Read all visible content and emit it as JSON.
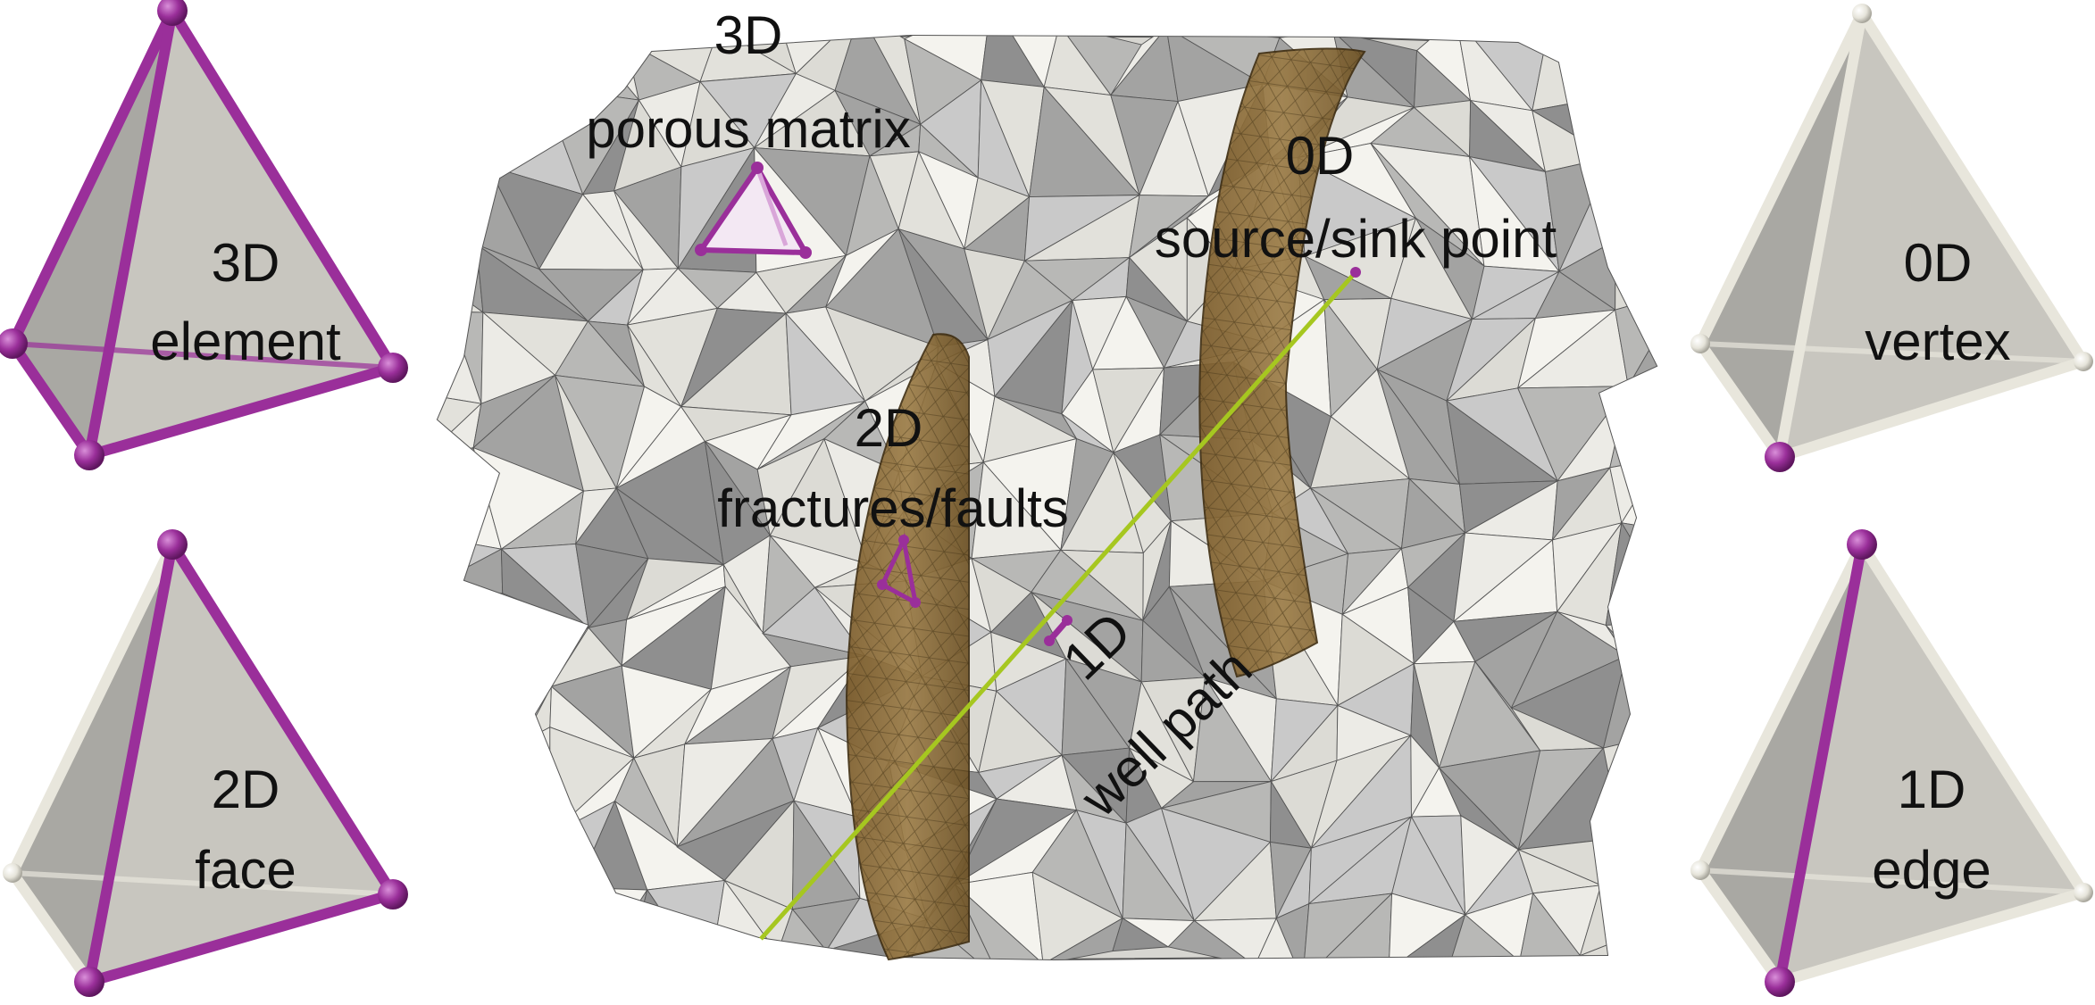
{
  "tetra_cards": [
    {
      "id": "element",
      "dim_label": "3D",
      "name_label": "element",
      "highlight": "all"
    },
    {
      "id": "face",
      "dim_label": "2D",
      "name_label": "face",
      "highlight": "face"
    },
    {
      "id": "vertex",
      "dim_label": "0D",
      "name_label": "vertex",
      "highlight": "vertex"
    },
    {
      "id": "edge",
      "dim_label": "1D",
      "name_label": "edge",
      "highlight": "edge"
    }
  ],
  "mesh_annotations": {
    "porous_matrix": {
      "dim": "3D",
      "name": "porous matrix"
    },
    "fractures": {
      "dim": "2D",
      "name": "fractures/faults"
    },
    "well": {
      "dim": "1D",
      "name": "well path"
    },
    "source": {
      "dim": "0D",
      "name": "source/sink point"
    }
  },
  "colors": {
    "highlight": "#9a2f9a",
    "tube": "#e8e6dc",
    "face": "#c8c6bf",
    "face_dark": "#a9a8a3",
    "mesh_light": "#ecebe6",
    "mesh_mid": "#c9c9c9",
    "mesh_dark": "#8f8f8f",
    "fracture": "#8a6a34",
    "well": "#a6c720",
    "text": "#111111"
  }
}
